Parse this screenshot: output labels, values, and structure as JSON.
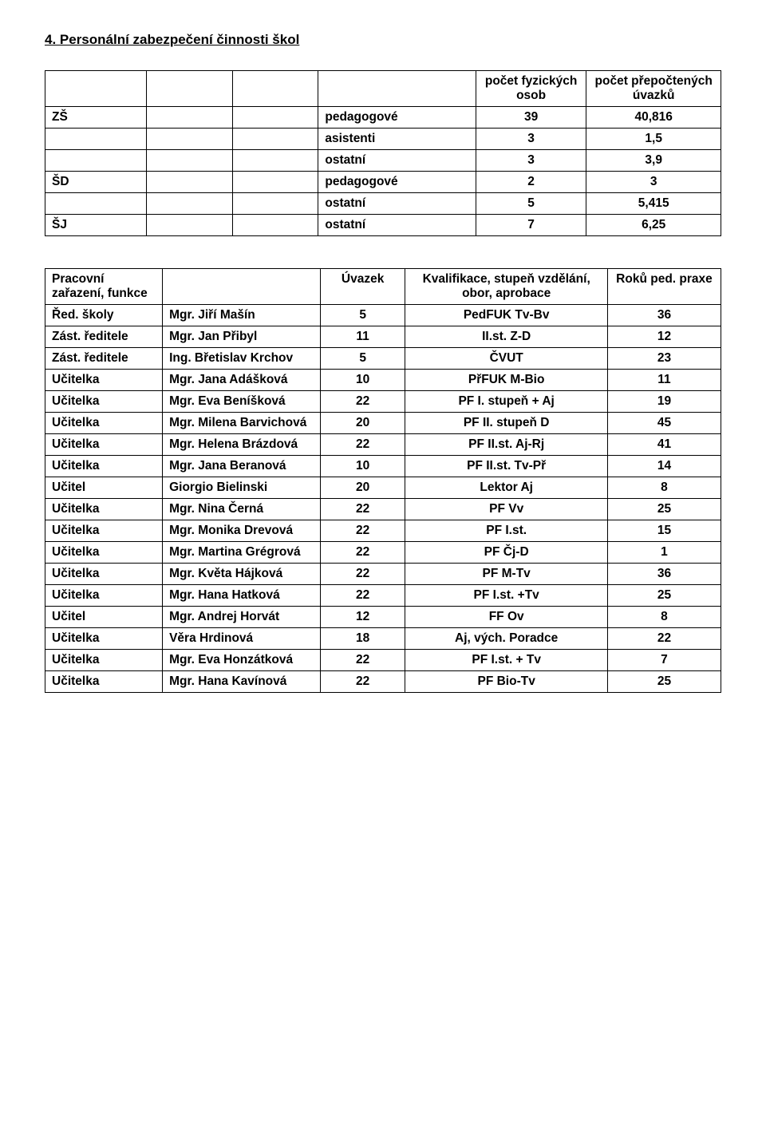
{
  "heading": "4.  Personální zabezpečení činnosti škol",
  "table1": {
    "header": {
      "col5": "počet fyzických osob",
      "col6": "počet přepočtených úvazků"
    },
    "rows": [
      {
        "c1": "ZŠ",
        "c4": "pedagogové",
        "c5": "39",
        "c6": "40,816"
      },
      {
        "c1": "",
        "c4": "asistenti",
        "c5": "3",
        "c6": "1,5"
      },
      {
        "c1": "",
        "c4": "ostatní",
        "c5": "3",
        "c6": "3,9"
      },
      {
        "c1": "ŠD",
        "c4": "pedagogové",
        "c5": "2",
        "c6": "3"
      },
      {
        "c1": "",
        "c4": "ostatní",
        "c5": "5",
        "c6": "5,415"
      },
      {
        "c1": "ŠJ",
        "c4": "ostatní",
        "c5": "7",
        "c6": "6,25"
      }
    ]
  },
  "table2": {
    "headers": {
      "c1": "Pracovní zařazení, funkce",
      "c2": "",
      "c3": "Úvazek",
      "c4": "Kvalifikace, stupeň vzdělání, obor, aprobace",
      "c5": "Roků ped. praxe"
    },
    "rows": [
      {
        "c1": "Řed. školy",
        "c2": "Mgr. Jiří Mašín",
        "c3": "5",
        "c4": "PedFUK    Tv-Bv",
        "c5": "36"
      },
      {
        "c1": "Zást. ředitele",
        "c2": "Mgr. Jan Přibyl",
        "c3": "11",
        "c4": "II.st.    Z-D",
        "c5": "12"
      },
      {
        "c1": "Zást. ředitele",
        "c2": "Ing. Břetislav Krchov",
        "c3": "5",
        "c4": "ČVUT",
        "c5": "23"
      },
      {
        "c1": "Učitelka",
        "c2": "Mgr. Jana Adášková",
        "c3": "10",
        "c4": "PřFUK  M-Bio",
        "c5": "11"
      },
      {
        "c1": "Učitelka",
        "c2": "Mgr. Eva Beníšková",
        "c3": "22",
        "c4": "PF    I. stupeň + Aj",
        "c5": "19"
      },
      {
        "c1": "Učitelka",
        "c2": "Mgr. Milena Barvichová",
        "c3": "20",
        "c4": "PF    II. stupeň  D",
        "c5": "45"
      },
      {
        "c1": "Učitelka",
        "c2": "Mgr. Helena Brázdová",
        "c3": "22",
        "c4": "PF    II.st. Aj-Rj",
        "c5": "41"
      },
      {
        "c1": "Učitelka",
        "c2": "Mgr. Jana Beranová",
        "c3": "10",
        "c4": "PF    II.st. Tv-Př",
        "c5": "14"
      },
      {
        "c1": "Učitel",
        "c2": "Giorgio Bielinski",
        "c3": "20",
        "c4": "Lektor  Aj",
        "c5": "8"
      },
      {
        "c1": "Učitelka",
        "c2": "Mgr. Nina Černá",
        "c3": "22",
        "c4": "PF  Vv",
        "c5": "25"
      },
      {
        "c1": "Učitelka",
        "c2": "Mgr. Monika Drevová",
        "c3": "22",
        "c4": "PF   I.st.",
        "c5": "15"
      },
      {
        "c1": "Učitelka",
        "c2": "Mgr. Martina Grégrová",
        "c3": "22",
        "c4": "PF Čj-D",
        "c5": "1"
      },
      {
        "c1": "Učitelka",
        "c2": "Mgr. Květa Hájková",
        "c3": "22",
        "c4": "PF   M-Tv",
        "c5": "36"
      },
      {
        "c1": "Učitelka",
        "c2": "Mgr. Hana Hatková",
        "c3": "22",
        "c4": "PF   I.st. +Tv",
        "c5": "25"
      },
      {
        "c1": "Učitel",
        "c2": "Mgr. Andrej Horvát",
        "c3": "12",
        "c4": "FF  Ov",
        "c5": "8"
      },
      {
        "c1": "Učitelka",
        "c2": "Věra Hrdinová",
        "c3": "18",
        "c4": "Aj, vých. Poradce",
        "c5": "22"
      },
      {
        "c1": "Učitelka",
        "c2": "Mgr. Eva Honzátková",
        "c3": "22",
        "c4": "PF I.st. + Tv",
        "c5": "7"
      },
      {
        "c1": "Učitelka",
        "c2": "Mgr. Hana Kavínová",
        "c3": "22",
        "c4": "PF Bio-Tv",
        "c5": "25"
      }
    ]
  }
}
